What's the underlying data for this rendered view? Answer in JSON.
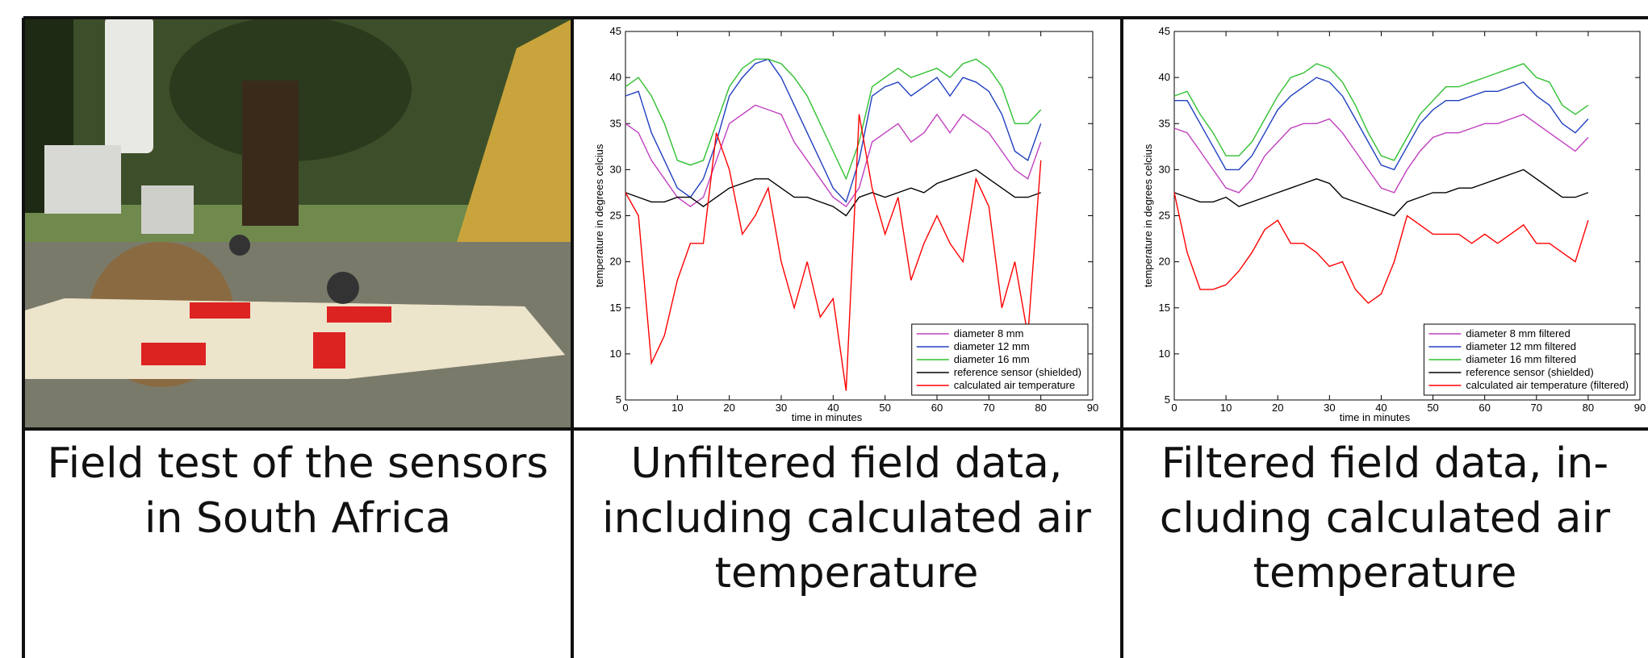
{
  "chart_data": [
    {
      "type": "line",
      "xlabel": "time in minutes",
      "ylabel": "temperature in degrees celcius",
      "xlim": [
        0,
        90
      ],
      "xticks": [
        0,
        10,
        20,
        30,
        40,
        50,
        60,
        70,
        80,
        90
      ],
      "ylim": [
        5,
        45
      ],
      "yticks": [
        5,
        10,
        15,
        20,
        25,
        30,
        35,
        40,
        45
      ],
      "legend": "lower right",
      "x": [
        0,
        2.5,
        5,
        7.5,
        10,
        12.5,
        15,
        17.5,
        20,
        22.5,
        25,
        27.5,
        30,
        32.5,
        35,
        37.5,
        40,
        42.5,
        45,
        47.5,
        50,
        52.5,
        55,
        57.5,
        60,
        62.5,
        65,
        67.5,
        70,
        72.5,
        75,
        77.5,
        80
      ],
      "series": [
        {
          "name": "diameter 8 mm",
          "color": "#c040c0",
          "values": [
            35,
            34,
            31,
            29,
            27,
            26,
            27,
            31,
            35,
            36,
            37,
            36.5,
            36,
            33,
            31,
            29,
            27,
            26,
            28,
            33,
            34,
            35,
            33,
            34,
            36,
            34,
            36,
            35,
            34,
            32,
            30,
            29,
            33
          ]
        },
        {
          "name": "diameter 12 mm",
          "color": "#2040c0",
          "values": [
            38,
            38.5,
            34,
            31,
            28,
            27,
            29,
            33,
            38,
            40,
            41.5,
            42,
            40,
            37,
            34,
            31,
            28,
            26.5,
            31,
            38,
            39,
            39.5,
            38,
            39,
            40,
            38,
            40,
            39.5,
            38.5,
            36,
            32,
            31,
            35
          ]
        },
        {
          "name": "diameter 16 mm",
          "color": "#30c030",
          "values": [
            39,
            40,
            38,
            35,
            31,
            30.5,
            31,
            35,
            39,
            41,
            42,
            42,
            41.5,
            40,
            38,
            35,
            32,
            29,
            33,
            39,
            40,
            41,
            40,
            40.5,
            41,
            40,
            41.5,
            42,
            41,
            39,
            35,
            35,
            36.5
          ]
        },
        {
          "name": "reference sensor (shielded)",
          "color": "#000000",
          "values": [
            27.5,
            27,
            26.5,
            26.5,
            27,
            27,
            26,
            27,
            28,
            28.5,
            29,
            29,
            28,
            27,
            27,
            26.5,
            26,
            25,
            27,
            27.5,
            27,
            27.5,
            28,
            27.5,
            28.5,
            29,
            29.5,
            30,
            29,
            28,
            27,
            27,
            27.5
          ]
        },
        {
          "name": "calculated air temperature",
          "color": "#ff0000",
          "values": [
            27.5,
            25,
            9,
            12,
            18,
            22,
            22,
            34,
            30,
            23,
            25,
            28,
            20,
            15,
            20,
            14,
            16,
            6,
            36,
            28,
            23,
            27,
            18,
            22,
            25,
            22,
            20,
            29,
            26,
            15,
            20,
            12,
            31
          ]
        }
      ]
    },
    {
      "type": "line",
      "xlabel": "time in minutes",
      "ylabel": "temperature in degrees celcius",
      "xlim": [
        0,
        90
      ],
      "xticks": [
        0,
        10,
        20,
        30,
        40,
        50,
        60,
        70,
        80,
        90
      ],
      "ylim": [
        5,
        45
      ],
      "yticks": [
        5,
        10,
        15,
        20,
        25,
        30,
        35,
        40,
        45
      ],
      "legend": "lower right",
      "x": [
        0,
        2.5,
        5,
        7.5,
        10,
        12.5,
        15,
        17.5,
        20,
        22.5,
        25,
        27.5,
        30,
        32.5,
        35,
        37.5,
        40,
        42.5,
        45,
        47.5,
        50,
        52.5,
        55,
        57.5,
        60,
        62.5,
        65,
        67.5,
        70,
        72.5,
        75,
        77.5,
        80
      ],
      "series": [
        {
          "name": "diameter 8 mm filtered",
          "color": "#c040c0",
          "values": [
            34.5,
            34,
            32,
            30,
            28,
            27.5,
            29,
            31.5,
            33,
            34.5,
            35,
            35,
            35.5,
            34,
            32,
            30,
            28,
            27.5,
            30,
            32,
            33.5,
            34,
            34,
            34.5,
            35,
            35,
            35.5,
            36,
            35,
            34,
            33,
            32,
            33.5
          ]
        },
        {
          "name": "diameter 12 mm filtered",
          "color": "#2040c0",
          "values": [
            37.5,
            37.5,
            35,
            32.5,
            30,
            30,
            31.5,
            34,
            36.5,
            38,
            39,
            40,
            39.5,
            38,
            35.5,
            33,
            30.5,
            30,
            32.5,
            35,
            36.5,
            37.5,
            37.5,
            38,
            38.5,
            38.5,
            39,
            39.5,
            38,
            37,
            35,
            34,
            35.5
          ]
        },
        {
          "name": "diameter 16 mm filtered",
          "color": "#30c030",
          "values": [
            38,
            38.5,
            36,
            34,
            31.5,
            31.5,
            33,
            35.5,
            38,
            40,
            40.5,
            41.5,
            41,
            39.5,
            37,
            34,
            31.5,
            31,
            33.5,
            36,
            37.5,
            39,
            39,
            39.5,
            40,
            40.5,
            41,
            41.5,
            40,
            39.5,
            37,
            36,
            37
          ]
        },
        {
          "name": "reference sensor (shielded)",
          "color": "#000000",
          "values": [
            27.5,
            27,
            26.5,
            26.5,
            27,
            26,
            26.5,
            27,
            27.5,
            28,
            28.5,
            29,
            28.5,
            27,
            26.5,
            26,
            25.5,
            25,
            26.5,
            27,
            27.5,
            27.5,
            28,
            28,
            28.5,
            29,
            29.5,
            30,
            29,
            28,
            27,
            27,
            27.5
          ]
        },
        {
          "name": "calculated air temperature (filtered)",
          "color": "#ff0000",
          "values": [
            27.5,
            21,
            17,
            17,
            17.5,
            19,
            21,
            23.5,
            24.5,
            22,
            22,
            21,
            19.5,
            20,
            17,
            15.5,
            16.5,
            20,
            25,
            24,
            23,
            23,
            23,
            22,
            23,
            22,
            23,
            24,
            22,
            22,
            21,
            20,
            24.5
          ]
        }
      ]
    }
  ],
  "captions": [
    [
      "Field test of the sensors",
      "in South Africa"
    ],
    [
      "Unfiltered field data,",
      "including calculated air",
      "temperature"
    ],
    [
      "Filtered field data, in-",
      "cluding calculated air",
      "temperature"
    ]
  ]
}
